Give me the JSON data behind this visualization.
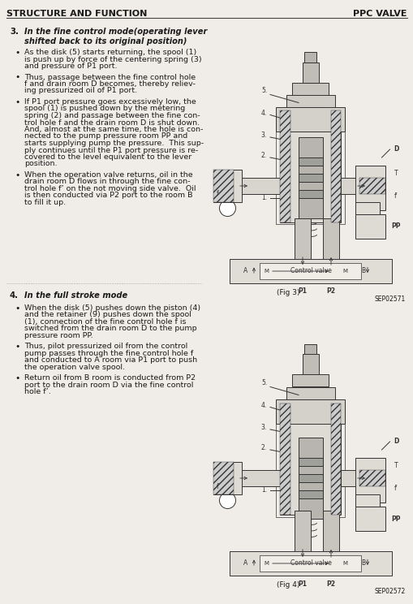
{
  "bg_color": "#f0ede8",
  "page_bg": "#f0ede8",
  "header_left": "STRUCTURE AND FUNCTION",
  "header_right": "PPC VALVE",
  "header_line_color": "#444444",
  "header_font_size": 8.0,
  "sec3_num": "3.",
  "sec3_head1": "In the fine control mode(operating lever",
  "sec3_head2": "shifted back to its original position)",
  "sec3_bullets": [
    "As the disk (5) starts returning, the spool (1)\nis push up by force of the centering spring (3)\nand pressure of P1 port.",
    "Thus, passage between the fine control hole\nf and drain room D becomes, thereby reliev-\ning pressurized oil of P1 port.",
    "If P1 port pressure goes excessively low, the\nspool (1) is pushed down by the metering\nspring (2) and passage between the fine con-\ntrol hole f and the drain room D is shut down.\nAnd, almost at the same time, the hole is con-\nnected to the pump pressure room PP and\nstarts supplying pump the pressure.  This sup-\nply continues until the P1 port pressure is re-\ncovered to the level equivalent to the lever\nposition.",
    "When the operation valve returns, oil in the\ndrain room D flows in through the fine con-\ntrol hole f’ on the not moving side valve.  Oil\nis then conducted via P2 port to the room B\nto fill it up."
  ],
  "fig3_label": "(Fig 3)",
  "fig3_code": "SEP02571",
  "sec4_num": "4.",
  "sec4_head": "In the full stroke mode",
  "sec4_bullets": [
    "When the disk (5) pushes down the piston (4)\nand the retainer (9) pushes down the spool\n(1), connection of the fine control hole f is\nswitched from the drain room D to the pump\npressure room PP.",
    "Thus, pilot pressurized oil from the control\npump passes through the fine control hole f\nand conducted to A room via P1 port to push\nthe operation valve spool.",
    "Return oil from B room is conducted from P2\nport to the drain room D via the fine control\nhole f’."
  ],
  "fig4_label": "(Fig 4)",
  "fig4_code": "SEP02572",
  "text_color": "#1a1a1a",
  "body_font_size": 6.8,
  "diag_line_color": "#333333",
  "diag_fill_light": "#e8e4de",
  "diag_fill_med": "#c8c4be",
  "diag_fill_dark": "#888480",
  "diag_hatch_color": "#666666"
}
